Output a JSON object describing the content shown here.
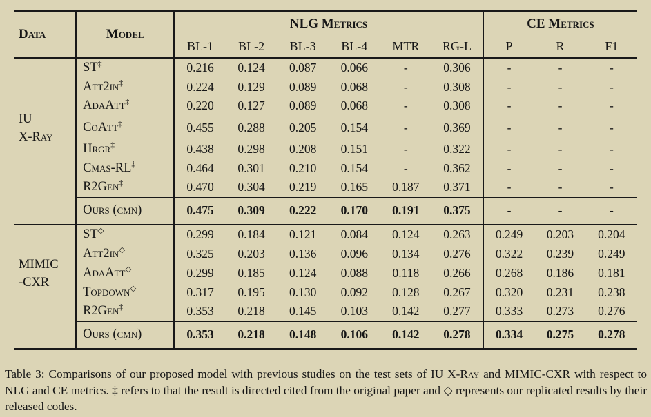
{
  "colors": {
    "page_background": "#dcd5b6",
    "rule": "#191919",
    "text": "#161616"
  },
  "table": {
    "headers": {
      "data": "Data",
      "model": "Model",
      "nlg_group": "NLG Metrics",
      "ce_group": "CE Metrics",
      "metrics": [
        "BL-1",
        "BL-2",
        "BL-3",
        "BL-4",
        "MTR",
        "RG-L",
        "P",
        "R",
        "F1"
      ]
    },
    "sections": [
      {
        "dataset_lines": [
          "IU",
          "X-Ray"
        ],
        "groups": [
          {
            "rows": [
              {
                "model": "ST",
                "marker": "‡",
                "values": [
                  "0.216",
                  "0.124",
                  "0.087",
                  "0.066",
                  "-",
                  "0.306",
                  "-",
                  "-",
                  "-"
                ]
              },
              {
                "model": "Att2in",
                "marker": "‡",
                "values": [
                  "0.224",
                  "0.129",
                  "0.089",
                  "0.068",
                  "-",
                  "0.308",
                  "-",
                  "-",
                  "-"
                ]
              },
              {
                "model": "AdaAtt",
                "marker": "‡",
                "values": [
                  "0.220",
                  "0.127",
                  "0.089",
                  "0.068",
                  "-",
                  "0.308",
                  "-",
                  "-",
                  "-"
                ]
              }
            ]
          },
          {
            "rows": [
              {
                "model": "CoAtt",
                "marker": "‡",
                "values": [
                  "0.455",
                  "0.288",
                  "0.205",
                  "0.154",
                  "-",
                  "0.369",
                  "-",
                  "-",
                  "-"
                ]
              },
              {
                "model": "Hrgr",
                "marker": "‡",
                "values": [
                  "0.438",
                  "0.298",
                  "0.208",
                  "0.151",
                  "-",
                  "0.322",
                  "-",
                  "-",
                  "-"
                ]
              },
              {
                "model": "Cmas-RL",
                "marker": "‡",
                "values": [
                  "0.464",
                  "0.301",
                  "0.210",
                  "0.154",
                  "-",
                  "0.362",
                  "-",
                  "-",
                  "-"
                ]
              },
              {
                "model": "R2Gen",
                "marker": "‡",
                "values": [
                  "0.470",
                  "0.304",
                  "0.219",
                  "0.165",
                  "0.187",
                  "0.371",
                  "-",
                  "-",
                  "-"
                ]
              }
            ]
          }
        ],
        "ours": {
          "model": "Ours (cmn)",
          "marker": "",
          "values": [
            "0.475",
            "0.309",
            "0.222",
            "0.170",
            "0.191",
            "0.375",
            "-",
            "-",
            "-"
          ]
        }
      },
      {
        "dataset_lines": [
          "MIMIC",
          "-CXR"
        ],
        "groups": [
          {
            "rows": [
              {
                "model": "ST",
                "marker": "◇",
                "values": [
                  "0.299",
                  "0.184",
                  "0.121",
                  "0.084",
                  "0.124",
                  "0.263",
                  "0.249",
                  "0.203",
                  "0.204"
                ]
              },
              {
                "model": "Att2in",
                "marker": "◇",
                "values": [
                  "0.325",
                  "0.203",
                  "0.136",
                  "0.096",
                  "0.134",
                  "0.276",
                  "0.322",
                  "0.239",
                  "0.249"
                ]
              },
              {
                "model": "AdaAtt",
                "marker": "◇",
                "values": [
                  "0.299",
                  "0.185",
                  "0.124",
                  "0.088",
                  "0.118",
                  "0.266",
                  "0.268",
                  "0.186",
                  "0.181"
                ]
              },
              {
                "model": "Topdown",
                "marker": "◇",
                "values": [
                  "0.317",
                  "0.195",
                  "0.130",
                  "0.092",
                  "0.128",
                  "0.267",
                  "0.320",
                  "0.231",
                  "0.238"
                ]
              },
              {
                "model": "R2Gen",
                "marker": "‡",
                "values": [
                  "0.353",
                  "0.218",
                  "0.145",
                  "0.103",
                  "0.142",
                  "0.277",
                  "0.333",
                  "0.273",
                  "0.276"
                ]
              }
            ]
          }
        ],
        "ours": {
          "model": "Ours (cmn)",
          "marker": "",
          "values": [
            "0.353",
            "0.218",
            "0.148",
            "0.106",
            "0.142",
            "0.278",
            "0.334",
            "0.275",
            "0.278"
          ]
        }
      }
    ]
  },
  "caption": {
    "segments": [
      {
        "text": "Table 3: Comparisons of our proposed model with previous studies on the test sets of ",
        "sc": false
      },
      {
        "text": "IU X-Ray",
        "sc": true
      },
      {
        "text": " and MIMIC-CXR with respect to NLG and CE metrics. ‡ refers to that the result is directed cited from the original paper and ◇ represents our replicated results by their released codes.",
        "sc": false
      }
    ]
  }
}
